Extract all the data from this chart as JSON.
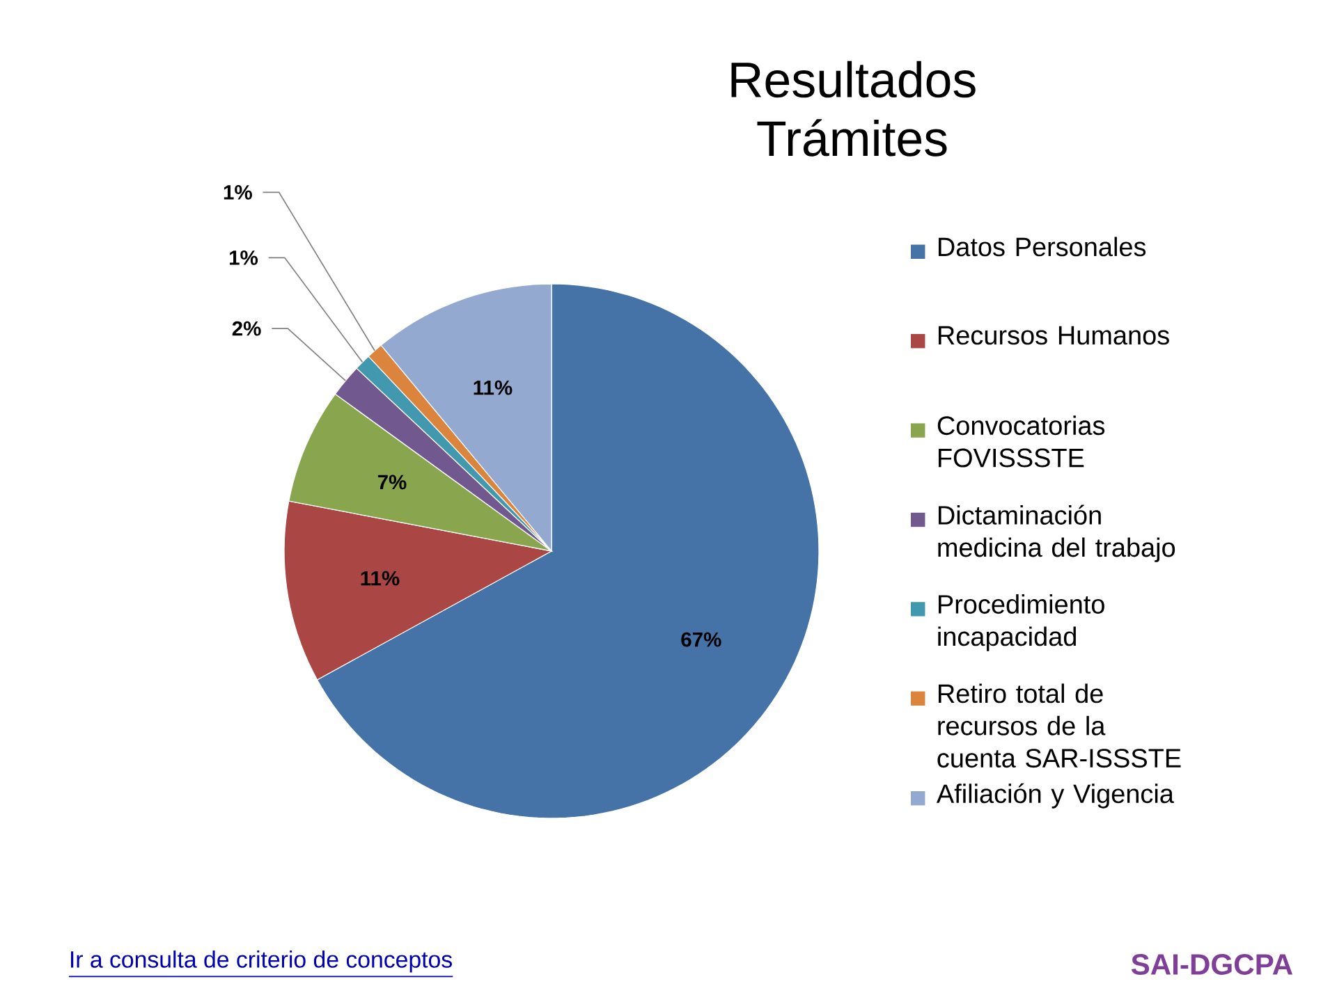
{
  "chart_data": {
    "type": "pie",
    "title": "Resultados",
    "subtitle": "Trámites",
    "categories": [
      "Datos Personales",
      "Recursos Humanos",
      "Convocatorias FOVISSSTE",
      "Dictaminación medicina del trabajo",
      "Procedimiento incapacidad",
      "Retiro total de recursos de la cuenta SAR-ISSSTE",
      "Afiliación y Vigencia"
    ],
    "values": [
      67,
      11,
      7,
      2,
      1,
      1,
      11
    ],
    "value_labels": [
      "67%",
      "11%",
      "7%",
      "2%",
      "1%",
      "1%",
      "11%"
    ],
    "colors": [
      "#4572a7",
      "#aa4643",
      "#89a54e",
      "#71588f",
      "#4198af",
      "#db843d",
      "#93a9cf"
    ],
    "legend": "right",
    "annotations": [
      "Ir a consulta de criterio de conceptos",
      "SAI-DGCPA"
    ]
  }
}
